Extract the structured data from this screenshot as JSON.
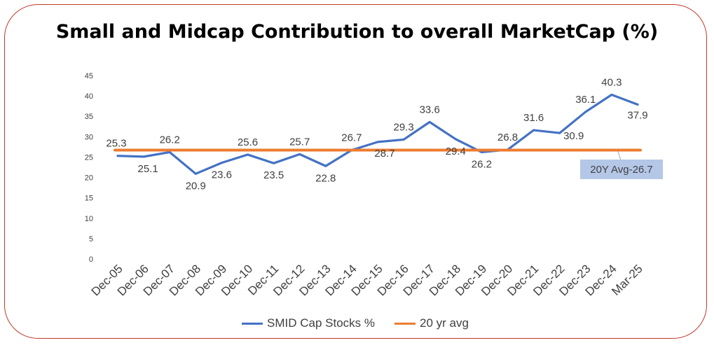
{
  "chart_data": {
    "type": "line",
    "title": "Small and Midcap Contribution to overall MarketCap (%)",
    "categories": [
      "Dec-05",
      "Dec-06",
      "Dec-07",
      "Dec-08",
      "Dec-09",
      "Dec-10",
      "Dec-11",
      "Dec-12",
      "Dec-13",
      "Dec-14",
      "Dec-15",
      "Dec-16",
      "Dec-17",
      "Dec-18",
      "Dec-19",
      "Dec-20",
      "Dec-21",
      "Dec-22",
      "Dec-23",
      "Dec-24",
      "Mar-25"
    ],
    "series": [
      {
        "name": "SMID Cap Stocks %",
        "color": "#4472c4",
        "values": [
          25.3,
          25.1,
          26.2,
          20.9,
          23.6,
          25.6,
          23.5,
          25.7,
          22.8,
          26.7,
          28.7,
          29.3,
          33.6,
          29.4,
          26.2,
          26.8,
          31.6,
          30.9,
          36.1,
          40.3,
          37.9
        ]
      },
      {
        "name": "20 yr avg",
        "color": "#ed7d31",
        "values": [
          26.7,
          26.7,
          26.7,
          26.7,
          26.7,
          26.7,
          26.7,
          26.7,
          26.7,
          26.7,
          26.7,
          26.7,
          26.7,
          26.7,
          26.7,
          26.7,
          26.7,
          26.7,
          26.7,
          26.7,
          26.7
        ]
      }
    ],
    "data_labels": [
      "25.3",
      "25.1",
      "26.2",
      "20.9",
      "23.6",
      "25.6",
      "23.5",
      "25.7",
      "22.8",
      "26.7",
      "28.7",
      "29.3",
      "33.6",
      "29.4",
      "26.2",
      "26.8",
      "31.6",
      "30.9",
      "36.1",
      "40.3",
      "37.9"
    ],
    "y_ticks": [
      "0",
      "5",
      "10",
      "15",
      "20",
      "25",
      "30",
      "35",
      "40",
      "45"
    ],
    "ylim": [
      0,
      45
    ],
    "annotation": "20Y Avg-26.7",
    "legend_position": "bottom",
    "grid": false
  }
}
